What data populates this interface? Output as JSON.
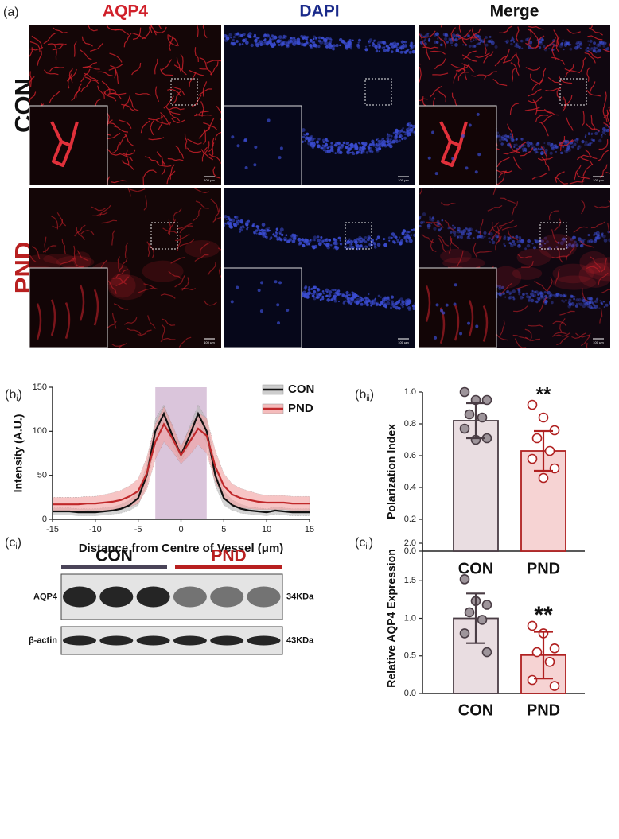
{
  "images": {
    "label": "(a)",
    "channels": [
      "AQP4",
      "DAPI",
      "Merge"
    ],
    "channel_colors": [
      "#d0202a",
      "#1a2a8a",
      "#111111"
    ],
    "groups": [
      "CON",
      "PND"
    ],
    "group_colors": [
      "#111111",
      "#b82020"
    ],
    "scale_bar": "100 μm"
  },
  "chart_data": [
    {
      "type": "line",
      "label": [
        "(b",
        "i",
        ")"
      ],
      "xlabel": "Distance from Centre of Vessel (μm)",
      "ylabel": "Intensity (A.U.)",
      "x": [
        -15,
        -14,
        -13,
        -12,
        -11,
        -10,
        -9,
        -8,
        -7,
        -6,
        -5,
        -4,
        -3,
        -2,
        -1,
        0,
        1,
        2,
        3,
        4,
        5,
        6,
        7,
        8,
        9,
        10,
        11,
        12,
        13,
        14,
        15
      ],
      "series": [
        {
          "name": "CON",
          "color": "#111111",
          "band_color": "#b8b8b8",
          "values": [
            9,
            9,
            9,
            8,
            8,
            8,
            9,
            10,
            12,
            16,
            24,
            50,
            100,
            120,
            95,
            73,
            95,
            120,
            100,
            50,
            24,
            16,
            12,
            10,
            9,
            8,
            10,
            9,
            8,
            8,
            8
          ],
          "errors": [
            4,
            4,
            4,
            4,
            4,
            4,
            4,
            4,
            5,
            6,
            8,
            12,
            14,
            10,
            10,
            8,
            10,
            10,
            14,
            12,
            8,
            6,
            5,
            4,
            4,
            4,
            4,
            4,
            4,
            4,
            4
          ]
        },
        {
          "name": "PND",
          "color": "#c0282a",
          "band_color": "#f2a0a0",
          "values": [
            17,
            17,
            17,
            17,
            18,
            18,
            19,
            20,
            22,
            26,
            32,
            52,
            88,
            108,
            92,
            73,
            88,
            103,
            95,
            60,
            38,
            28,
            24,
            22,
            20,
            19,
            19,
            19,
            18,
            18,
            18
          ],
          "errors": [
            8,
            8,
            8,
            8,
            8,
            8,
            9,
            10,
            11,
            12,
            14,
            18,
            20,
            20,
            15,
            10,
            15,
            18,
            20,
            18,
            14,
            12,
            11,
            10,
            9,
            8,
            8,
            8,
            8,
            8,
            8
          ]
        }
      ],
      "shaded_region": [
        -3,
        3
      ],
      "shaded_color": "#cdb2cf",
      "xlim": [
        -15,
        15
      ],
      "xticks": [
        -15,
        -10,
        -5,
        0,
        5,
        10,
        15
      ],
      "ylim": [
        0,
        150
      ],
      "yticks": [
        0,
        50,
        100,
        150
      ],
      "legend": "upper right"
    },
    {
      "type": "bar",
      "label": [
        "(b",
        "ii",
        ")"
      ],
      "ylabel": "Polarization Index",
      "categories": [
        "CON",
        "PND"
      ],
      "values": [
        0.82,
        0.63
      ],
      "errors": [
        0.11,
        0.125
      ],
      "points": [
        [
          1.0,
          0.95,
          0.95,
          0.86,
          0.84,
          0.77,
          0.71,
          0.7
        ],
        [
          0.92,
          0.84,
          0.76,
          0.71,
          0.63,
          0.58,
          0.52,
          0.46
        ]
      ],
      "colors": [
        "#e9dde1",
        "#f6d3d3"
      ],
      "edge_colors": [
        "#4a3d45",
        "#b02020"
      ],
      "point_fill": [
        "#9e959b",
        "#ffffff"
      ],
      "annotations": [
        {
          "text": "**",
          "category": "PND"
        }
      ],
      "ylim": [
        0,
        1
      ],
      "yticks": [
        {
          "value": 0,
          "label": "0.0"
        },
        0.2,
        0.4,
        0.6,
        0.8,
        {
          "value": 1,
          "label": "1.0"
        }
      ]
    },
    {
      "type": "bar",
      "label": [
        "(c",
        "ii",
        ")"
      ],
      "ylabel": "Relative AQP4 Expression",
      "categories": [
        "CON",
        "PND"
      ],
      "values": [
        1.0,
        0.51
      ],
      "errors": [
        0.33,
        0.31
      ],
      "points": [
        [
          1.52,
          1.23,
          1.18,
          1.08,
          0.98,
          0.8,
          0.55
        ],
        [
          0.9,
          0.8,
          0.6,
          0.55,
          0.42,
          0.18,
          0.1
        ]
      ],
      "colors": [
        "#e9dde1",
        "#f6d3d3"
      ],
      "edge_colors": [
        "#4a3d45",
        "#b02020"
      ],
      "point_fill": [
        "#9e959b",
        "#ffffff"
      ],
      "annotations": [
        {
          "text": "**",
          "category": "PND"
        }
      ],
      "ylim": [
        0,
        2
      ],
      "yticks": [
        {
          "value": 0,
          "label": "0.0"
        },
        0.5,
        {
          "value": 1,
          "label": "1.0"
        },
        1.5,
        {
          "value": 2,
          "label": "2.0"
        }
      ]
    }
  ],
  "blot": {
    "label": [
      "(c",
      "i",
      ")"
    ],
    "groups": [
      "CON",
      "PND"
    ],
    "group_colors": [
      "#4a4458",
      "#b82020"
    ],
    "rows": [
      {
        "name": "AQP4",
        "size": "34KDa"
      },
      {
        "name": "β-actin",
        "size": "43KDa"
      }
    ]
  }
}
